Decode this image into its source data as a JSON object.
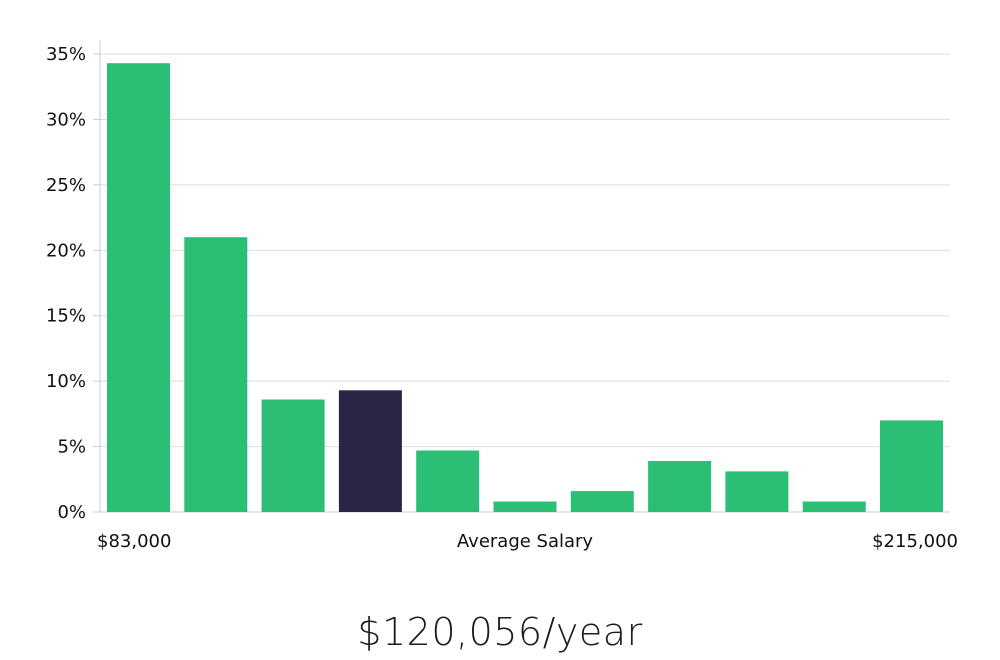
{
  "chart_data": {
    "type": "bar",
    "title": "",
    "xlabel": "Average Salary",
    "ylabel": "",
    "x_min_label": "$83,000",
    "x_max_label": "$215,000",
    "ylim": [
      0,
      35
    ],
    "yticks": [
      0,
      5,
      10,
      15,
      20,
      25,
      30,
      35
    ],
    "ytick_labels": [
      "0%",
      "5%",
      "10%",
      "15%",
      "20%",
      "25%",
      "30%",
      "35%"
    ],
    "grid": true,
    "values": [
      34.3,
      21.0,
      8.6,
      9.3,
      4.7,
      0.8,
      1.6,
      3.9,
      3.1,
      0.8,
      7.0
    ],
    "highlight_index": 3,
    "bar_color": "#2bbf76",
    "highlight_color": "#2b2545",
    "grid_color": "#dddddd"
  },
  "salary": {
    "display": "$120,056/year"
  }
}
